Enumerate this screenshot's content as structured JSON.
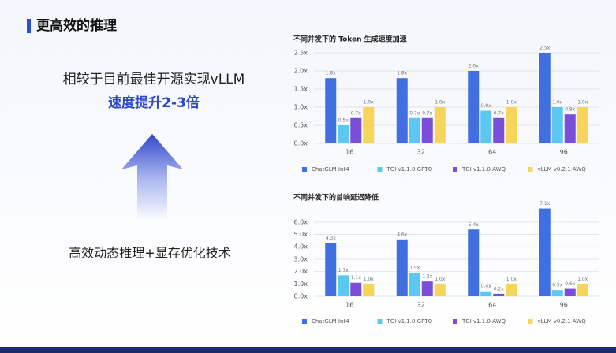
{
  "slide": {
    "title": "更高效的推理",
    "line1": "相较于目前最佳开源实现vLLM",
    "line2": "速度提升2-3倍",
    "line3": "高效动态推理+显存优化技术"
  },
  "chart_data": [
    {
      "type": "bar",
      "title": "不同并发下的 Token 生成速度加速",
      "categories": [
        "16",
        "32",
        "64",
        "96"
      ],
      "series": [
        {
          "name": "ChatGLM Int4",
          "color": "#3f6fe0",
          "values": [
            1.8,
            1.8,
            2.0,
            2.5
          ],
          "value_labels": [
            "1.8x",
            "1.8x",
            "2.0x",
            "2.5x"
          ]
        },
        {
          "name": "TGI v1.1.0 GPTQ",
          "color": "#5cc8f2",
          "values": [
            0.5,
            0.7,
            0.9,
            1.0
          ],
          "value_labels": [
            "0.5x",
            "0.7x",
            "0.9x",
            "1.0x"
          ]
        },
        {
          "name": "TGI v1.1.0 AWQ",
          "color": "#7a4fd8",
          "values": [
            0.7,
            0.7,
            0.7,
            0.8
          ],
          "value_labels": [
            "0.7x",
            "0.7x",
            "0.7x",
            "0.8x"
          ]
        },
        {
          "name": "vLLM v0.2.1 AWQ",
          "color": "#f7d45a",
          "values": [
            1.0,
            1.0,
            1.0,
            1.0
          ],
          "value_labels": [
            "1.0x",
            "1.0x",
            "1.0x",
            "1.0x"
          ]
        }
      ],
      "ylim": [
        0,
        2.5
      ],
      "yticks": [
        {
          "value": 0,
          "label": "0.0x"
        },
        {
          "value": 0.5,
          "label": "0.5x"
        },
        {
          "value": 1,
          "label": "1.0x"
        },
        {
          "value": 1.5,
          "label": "1.5x"
        },
        {
          "value": 2,
          "label": "2.0x"
        },
        {
          "value": 2.5,
          "label": "2.5x"
        }
      ],
      "grid": true,
      "legend": "bottom"
    },
    {
      "type": "bar",
      "title": "不同并发下的首响延迟降低",
      "categories": [
        "16",
        "32",
        "64",
        "96"
      ],
      "series": [
        {
          "name": "ChatGLM Int4",
          "color": "#3f6fe0",
          "values": [
            4.3,
            4.6,
            5.4,
            7.1
          ],
          "value_labels": [
            "4.3x",
            "4.6x",
            "5.4x",
            "7.1x"
          ]
        },
        {
          "name": "TGI v1.1.0 GPTQ",
          "color": "#5cc8f2",
          "values": [
            1.7,
            1.9,
            0.4,
            0.5
          ],
          "value_labels": [
            "1.7x",
            "1.9x",
            "0.4x",
            "0.5x"
          ]
        },
        {
          "name": "TGI v1.1.0 AWQ",
          "color": "#7a4fd8",
          "values": [
            1.1,
            1.2,
            0.2,
            0.6
          ],
          "value_labels": [
            "1.1x",
            "1.2x",
            "0.2x",
            "0.6x"
          ]
        },
        {
          "name": "vLLM v0.2.1 AWQ",
          "color": "#f7d45a",
          "values": [
            1.0,
            1.0,
            1.0,
            1.0
          ],
          "value_labels": [
            "1.0x",
            "1.0x",
            "1.0x",
            "1.0x"
          ]
        }
      ],
      "ylim": [
        0,
        7.2
      ],
      "yticks": [
        {
          "value": 0,
          "label": "0.0x"
        },
        {
          "value": 1,
          "label": "1.0x"
        },
        {
          "value": 2,
          "label": "2.0x"
        },
        {
          "value": 3,
          "label": "3.0x"
        },
        {
          "value": 4,
          "label": "4.0x"
        },
        {
          "value": 5,
          "label": "5.0x"
        },
        {
          "value": 6,
          "label": "6.0x"
        }
      ],
      "grid": true,
      "legend": "bottom"
    }
  ]
}
